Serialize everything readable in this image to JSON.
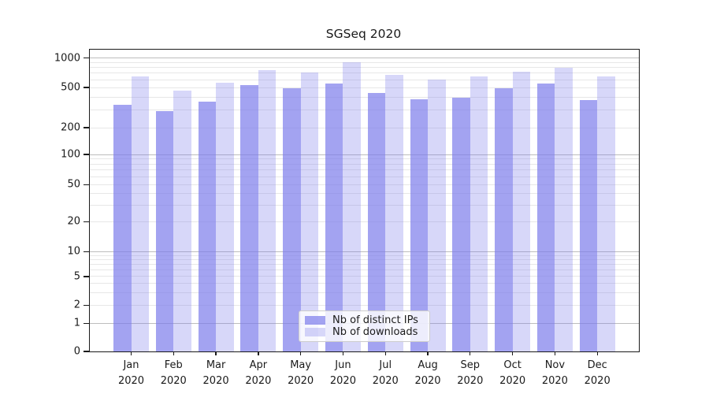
{
  "title": "SGSeq 2020",
  "chart_data": {
    "type": "bar",
    "title": "SGSeq 2020",
    "categories": [
      "Jan",
      "Feb",
      "Mar",
      "Apr",
      "May",
      "Jun",
      "Jul",
      "Aug",
      "Sep",
      "Oct",
      "Nov",
      "Dec"
    ],
    "category_second_line": "2020",
    "series": [
      {
        "name": "Nb of distinct IPs",
        "color": "rgba(124,124,235,0.7)",
        "values": [
          340,
          290,
          360,
          530,
          495,
          545,
          445,
          385,
          395,
          490,
          545,
          375
        ]
      },
      {
        "name": "Nb of downloads",
        "color": "rgba(124,124,235,0.3)",
        "values": [
          650,
          465,
          555,
          750,
          710,
          910,
          675,
          600,
          650,
          720,
          790,
          645
        ]
      }
    ],
    "yscale": "symlog",
    "ylim": [
      0,
      1100
    ],
    "yticks": [
      {
        "value": 0,
        "label": "0"
      },
      {
        "value": 1,
        "label": "1"
      },
      {
        "value": 2,
        "label": "2"
      },
      {
        "value": 5,
        "label": "5"
      },
      {
        "value": 10,
        "label": "10"
      },
      {
        "value": 20,
        "label": "20"
      },
      {
        "value": 50,
        "label": "50"
      },
      {
        "value": 100,
        "label": "100"
      },
      {
        "value": 200,
        "label": "200"
      },
      {
        "value": 500,
        "label": "500"
      },
      {
        "value": 1000,
        "label": "1000"
      }
    ],
    "major_gridlines": [
      1,
      10,
      100,
      1000
    ],
    "minor_gridlines": [
      2,
      3,
      4,
      5,
      6,
      7,
      8,
      9,
      20,
      30,
      40,
      50,
      60,
      70,
      80,
      90,
      200,
      300,
      400,
      500,
      600,
      700,
      800,
      900
    ],
    "scale_anchors": [
      [
        0,
        0.0
      ],
      [
        1,
        0.0933
      ],
      [
        2,
        0.1534
      ],
      [
        5,
        0.2482
      ],
      [
        10,
        0.3303
      ],
      [
        20,
        0.4304
      ],
      [
        50,
        0.5524
      ],
      [
        100,
        0.6525
      ],
      [
        200,
        0.7413
      ],
      [
        500,
        0.8746
      ],
      [
        1000,
        0.972
      ]
    ],
    "grid": true,
    "legend_position": "lower-center"
  },
  "legend": {
    "items": [
      {
        "label": "Nb of distinct IPs"
      },
      {
        "label": "Nb of downloads"
      }
    ]
  },
  "colors": {
    "bar_dark": "rgba(124,124,235,0.7)",
    "bar_light": "rgba(124,124,235,0.3)",
    "major_grid": "#bdbdbd",
    "minor_grid": "#e7e7e7",
    "spine": "#1a1a1a",
    "background": "#ffffff"
  }
}
